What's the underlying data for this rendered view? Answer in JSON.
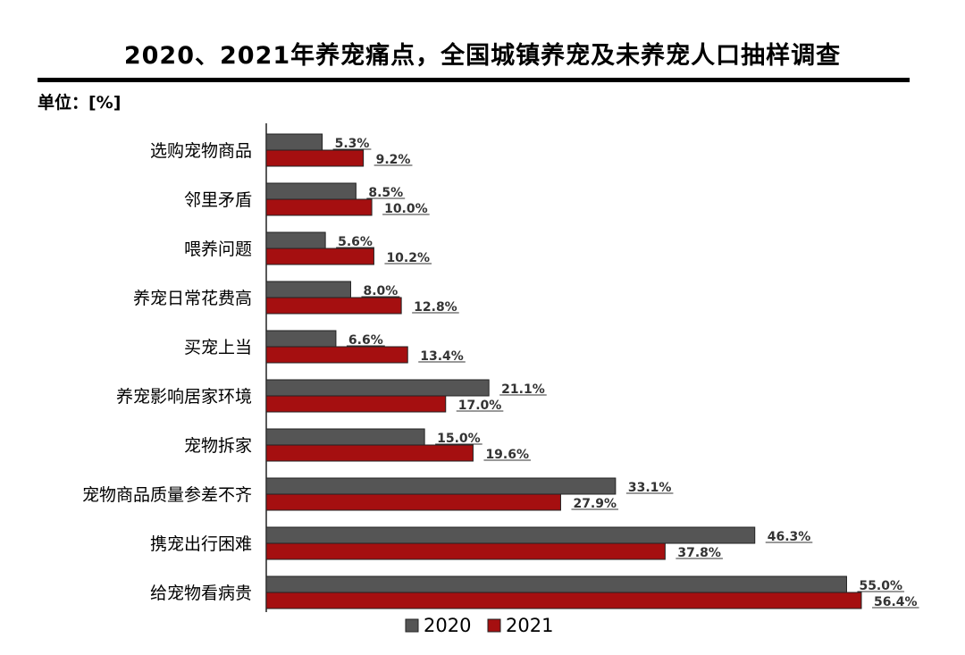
{
  "title": "2020、2021年养宠痛点，全国城镇养宠及未养宠人口抽样调查",
  "unit_label": "单位：[%]",
  "chart_data": {
    "type": "bar",
    "orientation": "horizontal",
    "title": "2020、2021年养宠痛点，全国城镇养宠及未养宠人口抽样调查",
    "unit": "%",
    "categories": [
      "选购宠物商品",
      "邻里矛盾",
      "喂养问题",
      "养宠日常花费高",
      "买宠上当",
      "养宠影响居家环境",
      "宠物拆家",
      "宠物商品质量参差不齐",
      "携宠出行困难",
      "给宠物看病贵"
    ],
    "series": [
      {
        "name": "2020",
        "color": "#555555",
        "values": [
          5.3,
          8.5,
          5.6,
          8.0,
          6.6,
          21.1,
          15.0,
          33.1,
          46.3,
          55.0
        ],
        "labels": [
          "5.3%",
          "8.5%",
          "5.6%",
          "8.0%",
          "6.6%",
          "21.1%",
          "15.0%",
          "33.1%",
          "46.3%",
          "55.0%"
        ]
      },
      {
        "name": "2021",
        "color": "#a50f10",
        "values": [
          9.2,
          10.0,
          10.2,
          12.8,
          13.4,
          17.0,
          19.6,
          27.9,
          37.8,
          56.4
        ],
        "labels": [
          "9.2%",
          "10.0%",
          "10.2%",
          "12.8%",
          "13.4%",
          "17.0%",
          "19.6%",
          "27.9%",
          "37.8%",
          "56.4%"
        ]
      }
    ],
    "xlim": [
      0,
      56.4
    ],
    "grid": false,
    "legend": "bottom"
  }
}
